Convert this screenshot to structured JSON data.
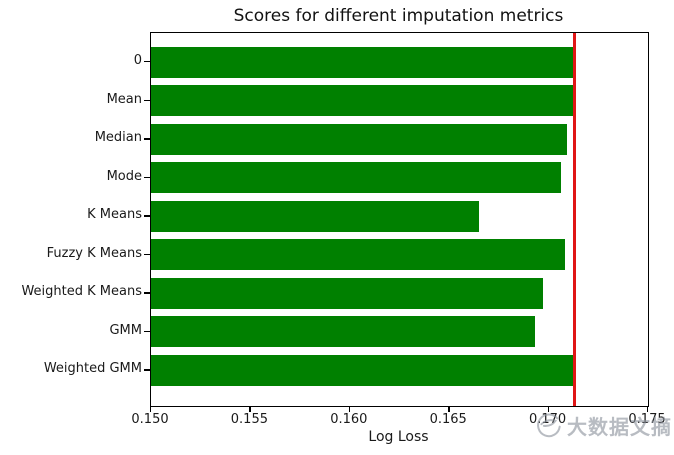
{
  "chart_data": {
    "type": "bar",
    "orientation": "horizontal",
    "title": "Scores for different imputation metrics",
    "xlabel": "Log Loss",
    "ylabel": "",
    "categories": [
      "0",
      "Mean",
      "Median",
      "Mode",
      "K Means",
      "Fuzzy K Means",
      "Weighted K Means",
      "GMM",
      "Weighted GMM"
    ],
    "values": [
      0.1712,
      0.1713,
      0.1709,
      0.1706,
      0.1665,
      0.1708,
      0.1697,
      0.1693,
      0.1712
    ],
    "xlim": [
      0.15,
      0.175
    ],
    "xticks": [
      0.15,
      0.155,
      0.16,
      0.165,
      0.17,
      0.175
    ],
    "bar_color": "#008000",
    "reference_line": {
      "orientation": "vertical",
      "value": 0.1713,
      "color": "#e01616"
    },
    "grid": false,
    "legend": null
  },
  "watermark": {
    "text": "大数据文摘",
    "logo": "bird-circle-logo",
    "color": "#8e949e"
  }
}
